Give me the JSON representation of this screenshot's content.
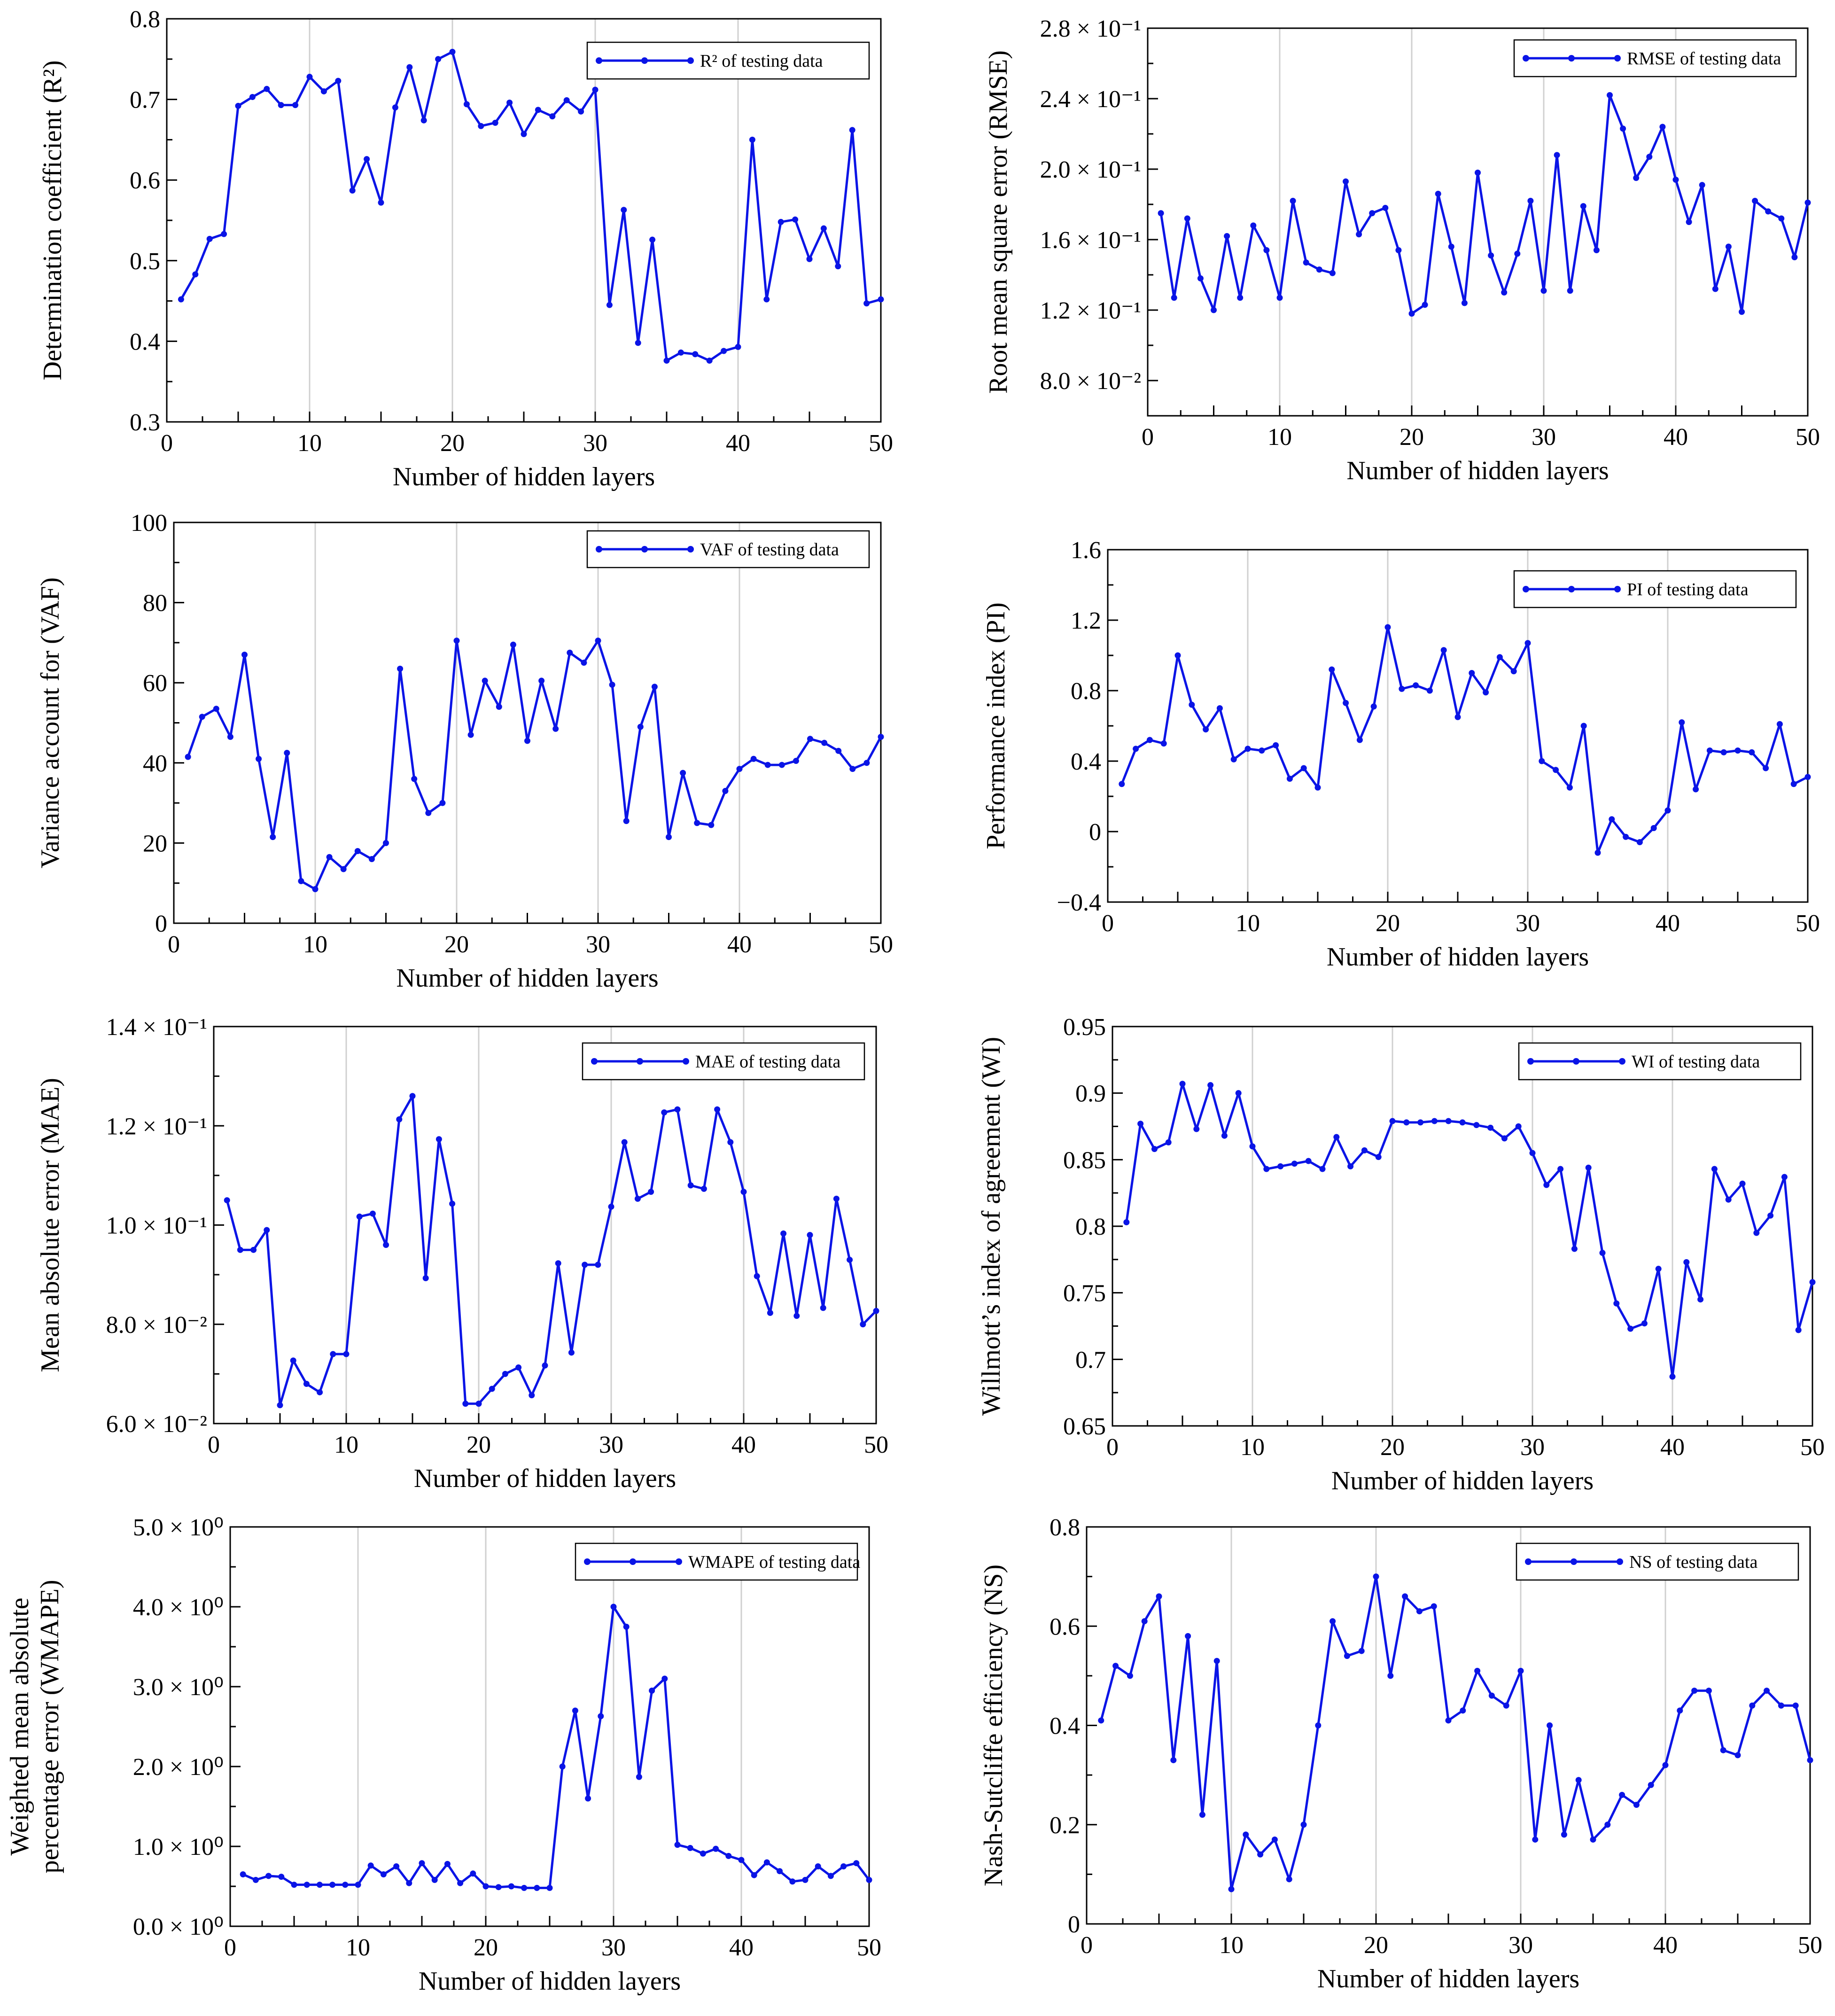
{
  "figure": {
    "colors": {
      "series": "#0a14e6",
      "grid": "#d0d0d0",
      "axis": "#000000"
    }
  },
  "chart_data": [
    {
      "id": "r2",
      "type": "line",
      "title": "",
      "xlabel": "Number of hidden layers",
      "ylabel": "Determination coefficient (R²)",
      "legend": "R² of testing data",
      "legend_position": "top-right",
      "xlim": [
        0,
        50
      ],
      "ylim": [
        0.3,
        0.8
      ],
      "grid": "x",
      "xticks": [
        "0",
        "10",
        "20",
        "30",
        "40",
        "50"
      ],
      "yticks": [
        "0.3",
        "0.4",
        "0.5",
        "0.6",
        "0.7",
        "0.8"
      ],
      "x": [
        1,
        2,
        3,
        4,
        5,
        6,
        7,
        8,
        9,
        10,
        11,
        12,
        13,
        14,
        15,
        16,
        17,
        18,
        19,
        20,
        21,
        22,
        23,
        24,
        25,
        26,
        27,
        28,
        29,
        30,
        31,
        32,
        33,
        34,
        35,
        36,
        37,
        38,
        39,
        40,
        41,
        42,
        43,
        44,
        45,
        46,
        47,
        48,
        49,
        50
      ],
      "values": [
        0.452,
        0.483,
        0.527,
        0.533,
        0.692,
        0.703,
        0.713,
        0.693,
        0.693,
        0.728,
        0.71,
        0.723,
        0.587,
        0.626,
        0.572,
        0.69,
        0.74,
        0.674,
        0.75,
        0.759,
        0.694,
        0.667,
        0.671,
        0.696,
        0.657,
        0.687,
        0.679,
        0.699,
        0.685,
        0.712,
        0.445,
        0.563,
        0.398,
        0.526,
        0.376,
        0.386,
        0.384,
        0.376,
        0.388,
        0.393,
        0.65,
        0.452,
        0.548,
        0.551,
        0.502,
        0.54,
        0.493,
        0.662,
        0.447,
        0.452
      ]
    },
    {
      "id": "rmse",
      "type": "line",
      "title": "",
      "xlabel": "Number of hidden layers",
      "ylabel": "Root mean square error  (RMSE)",
      "legend": "RMSE of testing data",
      "legend_position": "top-right",
      "xlim": [
        0,
        50
      ],
      "ylim": [
        0.06,
        0.28
      ],
      "grid": "x",
      "xticks": [
        "0",
        "10",
        "20",
        "30",
        "40",
        "50"
      ],
      "yticks": [
        "8.0 × 10⁻²",
        "1.2 × 10⁻¹",
        "1.6 × 10⁻¹",
        "2.0 × 10⁻¹",
        "2.4 × 10⁻¹",
        "2.8 × 10⁻¹"
      ],
      "ytick_values": [
        0.08,
        0.12,
        0.16,
        0.2,
        0.24,
        0.28
      ],
      "x": [
        1,
        2,
        3,
        4,
        5,
        6,
        7,
        8,
        9,
        10,
        11,
        12,
        13,
        14,
        15,
        16,
        17,
        18,
        19,
        20,
        21,
        22,
        23,
        24,
        25,
        26,
        27,
        28,
        29,
        30,
        31,
        32,
        33,
        34,
        35,
        36,
        37,
        38,
        39,
        40,
        41,
        42,
        43,
        44,
        45,
        46,
        47,
        48,
        49,
        50
      ],
      "values": [
        0.175,
        0.127,
        0.172,
        0.138,
        0.12,
        0.162,
        0.127,
        0.168,
        0.154,
        0.127,
        0.182,
        0.147,
        0.143,
        0.141,
        0.193,
        0.163,
        0.175,
        0.178,
        0.154,
        0.118,
        0.123,
        0.186,
        0.156,
        0.124,
        0.198,
        0.151,
        0.13,
        0.152,
        0.182,
        0.131,
        0.208,
        0.131,
        0.179,
        0.154,
        0.242,
        0.223,
        0.195,
        0.207,
        0.224,
        0.194,
        0.17,
        0.191,
        0.132,
        0.156,
        0.119,
        0.182,
        0.176,
        0.172,
        0.15,
        0.181
      ]
    },
    {
      "id": "vaf",
      "type": "line",
      "title": "",
      "xlabel": "Number of hidden layers",
      "ylabel": "Variance account for  (VAF)",
      "legend": "VAF of testing data",
      "legend_position": "top-right",
      "xlim": [
        0,
        50
      ],
      "ylim": [
        0,
        100
      ],
      "grid": "x",
      "xticks": [
        "0",
        "10",
        "20",
        "30",
        "40",
        "50"
      ],
      "yticks": [
        "0",
        "20",
        "40",
        "60",
        "80",
        "100"
      ],
      "x": [
        1,
        2,
        3,
        4,
        5,
        6,
        7,
        8,
        9,
        10,
        11,
        12,
        13,
        14,
        15,
        16,
        17,
        18,
        19,
        20,
        21,
        22,
        23,
        24,
        25,
        26,
        27,
        28,
        29,
        30,
        31,
        32,
        33,
        34,
        35,
        36,
        37,
        38,
        39,
        40,
        41,
        42,
        43,
        44,
        45,
        46,
        47,
        48,
        49,
        50
      ],
      "values": [
        41.5,
        51.5,
        53.5,
        46.5,
        67.0,
        41.0,
        21.5,
        42.5,
        10.5,
        8.5,
        16.5,
        13.5,
        18.0,
        16.0,
        20.0,
        63.5,
        36.0,
        27.5,
        30.0,
        70.5,
        47.0,
        60.5,
        54.0,
        69.5,
        45.5,
        60.5,
        48.5,
        67.5,
        65.0,
        70.5,
        59.5,
        25.5,
        49.0,
        59.0,
        21.5,
        37.5,
        25.0,
        24.5,
        33.0,
        38.5,
        41.0,
        39.5,
        39.5,
        40.5,
        46.0,
        45.0,
        43.0,
        38.5,
        40.0,
        46.5
      ]
    },
    {
      "id": "pi",
      "type": "line",
      "title": "",
      "xlabel": "Number of hidden layers",
      "ylabel": "Performance index (PI)",
      "legend": "PI of testing data",
      "legend_position": "top-right",
      "xlim": [
        0,
        50
      ],
      "ylim": [
        -0.4,
        1.6
      ],
      "grid": "x",
      "xticks": [
        "0",
        "10",
        "20",
        "30",
        "40",
        "50"
      ],
      "yticks": [
        "−0.4",
        "0",
        "0.4",
        "0.8",
        "1.2",
        "1.6"
      ],
      "ytick_values": [
        -0.4,
        0,
        0.4,
        0.8,
        1.2,
        1.6
      ],
      "x": [
        1,
        2,
        3,
        4,
        5,
        6,
        7,
        8,
        9,
        10,
        11,
        12,
        13,
        14,
        15,
        16,
        17,
        18,
        19,
        20,
        21,
        22,
        23,
        24,
        25,
        26,
        27,
        28,
        29,
        30,
        31,
        32,
        33,
        34,
        35,
        36,
        37,
        38,
        39,
        40,
        41,
        42,
        43,
        44,
        45,
        46,
        47,
        48,
        49,
        50
      ],
      "values": [
        0.27,
        0.47,
        0.52,
        0.5,
        1.0,
        0.72,
        0.58,
        0.7,
        0.41,
        0.47,
        0.46,
        0.49,
        0.3,
        0.36,
        0.25,
        0.92,
        0.73,
        0.52,
        0.71,
        1.16,
        0.81,
        0.83,
        0.8,
        1.03,
        0.65,
        0.9,
        0.79,
        0.99,
        0.91,
        1.07,
        0.4,
        0.35,
        0.25,
        0.6,
        -0.12,
        0.07,
        -0.03,
        -0.06,
        0.02,
        0.12,
        0.62,
        0.24,
        0.46,
        0.45,
        0.46,
        0.45,
        0.36,
        0.61,
        0.27,
        0.31
      ]
    },
    {
      "id": "mae",
      "type": "line",
      "title": "",
      "xlabel": "Number of hidden layers",
      "ylabel": "Mean absolute error (MAE)",
      "legend": "MAE of testing data",
      "legend_position": "top-right",
      "xlim": [
        0,
        50
      ],
      "ylim": [
        0.06,
        0.14
      ],
      "grid": "x",
      "xticks": [
        "0",
        "10",
        "20",
        "30",
        "40",
        "50"
      ],
      "yticks": [
        "6.0 × 10⁻²",
        "8.0 × 10⁻²",
        "1.0 × 10⁻¹",
        "1.2 × 10⁻¹",
        "1.4 × 10⁻¹"
      ],
      "ytick_values": [
        0.06,
        0.08,
        0.1,
        0.12,
        0.14
      ],
      "x": [
        1,
        2,
        3,
        4,
        5,
        6,
        7,
        8,
        9,
        10,
        11,
        12,
        13,
        14,
        15,
        16,
        17,
        18,
        19,
        20,
        21,
        22,
        23,
        24,
        25,
        26,
        27,
        28,
        29,
        30,
        31,
        32,
        33,
        34,
        35,
        36,
        37,
        38,
        39,
        40,
        41,
        42,
        43,
        44,
        45,
        46,
        47,
        48,
        49,
        50
      ],
      "values": [
        0.105,
        0.095,
        0.095,
        0.099,
        0.0637,
        0.0727,
        0.068,
        0.0663,
        0.074,
        0.074,
        0.1017,
        0.1023,
        0.096,
        0.1213,
        0.126,
        0.0893,
        0.1173,
        0.1043,
        0.064,
        0.064,
        0.067,
        0.07,
        0.0713,
        0.0657,
        0.0717,
        0.0923,
        0.0743,
        0.092,
        0.092,
        0.1037,
        0.1167,
        0.1053,
        0.1067,
        0.1227,
        0.1233,
        0.108,
        0.1073,
        0.1233,
        0.1167,
        0.1067,
        0.0897,
        0.0823,
        0.0983,
        0.0817,
        0.098,
        0.0833,
        0.1053,
        0.093,
        0.08,
        0.0827
      ]
    },
    {
      "id": "wi",
      "type": "line",
      "title": "",
      "xlabel": "Number of hidden layers",
      "ylabel": "Willmott’s index of agreement (WI)",
      "legend": "WI of testing data",
      "legend_position": "top-right",
      "xlim": [
        0,
        50
      ],
      "ylim": [
        0.65,
        0.95
      ],
      "grid": "x",
      "xticks": [
        "0",
        "10",
        "20",
        "30",
        "40",
        "50"
      ],
      "yticks": [
        "0.65",
        "0.7",
        "0.75",
        "0.8",
        "0.85",
        "0.9",
        "0.95"
      ],
      "x": [
        1,
        2,
        3,
        4,
        5,
        6,
        7,
        8,
        9,
        10,
        11,
        12,
        13,
        14,
        15,
        16,
        17,
        18,
        19,
        20,
        21,
        22,
        23,
        24,
        25,
        26,
        27,
        28,
        29,
        30,
        31,
        32,
        33,
        34,
        35,
        36,
        37,
        38,
        39,
        40,
        41,
        42,
        43,
        44,
        45,
        46,
        47,
        48,
        49,
        50
      ],
      "values": [
        0.803,
        0.877,
        0.858,
        0.863,
        0.907,
        0.873,
        0.906,
        0.868,
        0.9,
        0.86,
        0.843,
        0.845,
        0.847,
        0.849,
        0.843,
        0.867,
        0.845,
        0.857,
        0.852,
        0.879,
        0.878,
        0.878,
        0.879,
        0.879,
        0.878,
        0.876,
        0.874,
        0.866,
        0.875,
        0.855,
        0.831,
        0.843,
        0.783,
        0.844,
        0.78,
        0.742,
        0.723,
        0.727,
        0.768,
        0.687,
        0.773,
        0.745,
        0.843,
        0.82,
        0.832,
        0.795,
        0.808,
        0.837,
        0.722,
        0.758
      ]
    },
    {
      "id": "wmape",
      "type": "line",
      "title": "",
      "xlabel": "Number of hidden layers",
      "ylabel": "Weighted mean absolute percentage error (WMAPE)",
      "ylabel_lines": [
        "Weighted mean absolute",
        "percentage error (WMAPE)"
      ],
      "legend": "WMAPE of testing data",
      "legend_position": "top-right",
      "xlim": [
        0,
        50
      ],
      "ylim": [
        0,
        5
      ],
      "grid": "x",
      "xticks": [
        "0",
        "10",
        "20",
        "30",
        "40",
        "50"
      ],
      "yticks": [
        "0.0 × 10⁰",
        "1.0 × 10⁰",
        "2.0 × 10⁰",
        "3.0 × 10⁰",
        "4.0 × 10⁰",
        "5.0 × 10⁰"
      ],
      "ytick_values": [
        0,
        1,
        2,
        3,
        4,
        5
      ],
      "x": [
        1,
        2,
        3,
        4,
        5,
        6,
        7,
        8,
        9,
        10,
        11,
        12,
        13,
        14,
        15,
        16,
        17,
        18,
        19,
        20,
        21,
        22,
        23,
        24,
        25,
        26,
        27,
        28,
        29,
        30,
        31,
        32,
        33,
        34,
        35,
        36,
        37,
        38,
        39,
        40,
        41,
        42,
        43,
        44,
        45,
        46,
        47,
        48,
        49,
        50
      ],
      "values": [
        0.65,
        0.58,
        0.63,
        0.62,
        0.52,
        0.52,
        0.52,
        0.52,
        0.52,
        0.52,
        0.76,
        0.65,
        0.75,
        0.54,
        0.79,
        0.58,
        0.78,
        0.54,
        0.66,
        0.5,
        0.49,
        0.5,
        0.48,
        0.48,
        0.48,
        2.0,
        2.7,
        1.6,
        2.63,
        4.0,
        3.75,
        1.87,
        2.95,
        3.1,
        1.02,
        0.98,
        0.91,
        0.97,
        0.88,
        0.83,
        0.64,
        0.8,
        0.69,
        0.56,
        0.58,
        0.75,
        0.63,
        0.75,
        0.79,
        0.58
      ]
    },
    {
      "id": "ns",
      "type": "line",
      "title": "",
      "xlabel": "Number of hidden layers",
      "ylabel": "Nash-Sutcliffe efficiency (NS)",
      "legend": "NS of testing data",
      "legend_position": "top-right",
      "xlim": [
        0,
        50
      ],
      "ylim": [
        0,
        0.8
      ],
      "grid": "x",
      "xticks": [
        "0",
        "10",
        "20",
        "30",
        "40",
        "50"
      ],
      "yticks": [
        "0",
        "0.2",
        "0.4",
        "0.6",
        "0.8"
      ],
      "x": [
        1,
        2,
        3,
        4,
        5,
        6,
        7,
        8,
        9,
        10,
        11,
        12,
        13,
        14,
        15,
        16,
        17,
        18,
        19,
        20,
        21,
        22,
        23,
        24,
        25,
        26,
        27,
        28,
        29,
        30,
        31,
        32,
        33,
        34,
        35,
        36,
        37,
        38,
        39,
        40,
        41,
        42,
        43,
        44,
        45,
        46,
        47,
        48,
        49,
        50
      ],
      "values": [
        0.41,
        0.52,
        0.5,
        0.61,
        0.66,
        0.33,
        0.58,
        0.22,
        0.53,
        0.07,
        0.18,
        0.14,
        0.17,
        0.09,
        0.2,
        0.4,
        0.61,
        0.54,
        0.55,
        0.7,
        0.5,
        0.66,
        0.63,
        0.64,
        0.41,
        0.43,
        0.51,
        0.46,
        0.44,
        0.51,
        0.17,
        0.4,
        0.18,
        0.29,
        0.17,
        0.2,
        0.26,
        0.24,
        0.28,
        0.32,
        0.43,
        0.47,
        0.47,
        0.35,
        0.34,
        0.44,
        0.47,
        0.44,
        0.44,
        0.33
      ]
    }
  ]
}
